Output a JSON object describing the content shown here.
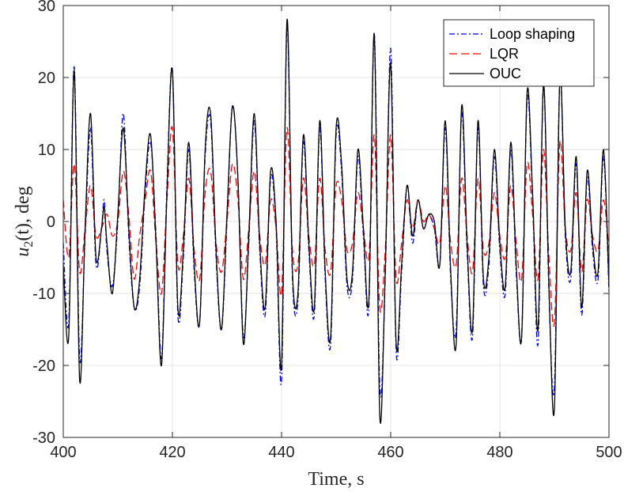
{
  "chart_data": {
    "type": "line",
    "title": "",
    "xlabel": "Time, s",
    "ylabel": "u2(t), deg",
    "ylabel_main": "u",
    "ylabel_sub": "2",
    "ylabel_rest": "(t), deg",
    "xlim": [
      400,
      500
    ],
    "ylim": [
      -30,
      30
    ],
    "xticks": [
      400,
      420,
      440,
      460,
      480,
      500
    ],
    "yticks": [
      -30,
      -20,
      -10,
      0,
      10,
      20,
      30
    ],
    "grid": true,
    "legend_position": "top-right",
    "series": [
      {
        "name": "Loop shaping",
        "color": "#0000ff",
        "style": "dash-dot",
        "points": [
          [
            400,
            -3
          ],
          [
            401,
            -14
          ],
          [
            402,
            21.5
          ],
          [
            403,
            -19
          ],
          [
            404,
            -2
          ],
          [
            405,
            13
          ],
          [
            406,
            -6
          ],
          [
            407,
            -1
          ],
          [
            407.5,
            3
          ],
          [
            408,
            -4
          ],
          [
            409,
            -9
          ],
          [
            410,
            0
          ],
          [
            411,
            15
          ],
          [
            412,
            -2
          ],
          [
            413,
            -12
          ],
          [
            414,
            -9
          ],
          [
            415,
            4
          ],
          [
            416,
            11
          ],
          [
            417,
            -2
          ],
          [
            418,
            -19
          ],
          [
            419,
            5
          ],
          [
            420,
            21
          ],
          [
            421,
            -13
          ],
          [
            422,
            -5
          ],
          [
            423,
            10
          ],
          [
            424,
            -7
          ],
          [
            425,
            -14
          ],
          [
            426,
            9
          ],
          [
            427,
            14
          ],
          [
            428,
            -5
          ],
          [
            429,
            -15
          ],
          [
            430,
            0
          ],
          [
            431,
            16
          ],
          [
            432,
            6
          ],
          [
            433,
            -16
          ],
          [
            434,
            -3
          ],
          [
            435,
            14
          ],
          [
            436,
            -4
          ],
          [
            437,
            -13
          ],
          [
            438,
            6
          ],
          [
            439,
            -1
          ],
          [
            440,
            -22
          ],
          [
            441,
            27
          ],
          [
            442,
            -8
          ],
          [
            443,
            -11
          ],
          [
            444,
            11
          ],
          [
            445,
            -4
          ],
          [
            446,
            -13
          ],
          [
            447,
            13
          ],
          [
            448,
            -8
          ],
          [
            449,
            -17
          ],
          [
            450,
            12
          ],
          [
            451,
            7
          ],
          [
            452,
            -9
          ],
          [
            453,
            -8
          ],
          [
            454,
            9
          ],
          [
            455,
            -2
          ],
          [
            456,
            -12
          ],
          [
            457,
            26
          ],
          [
            458,
            -23
          ],
          [
            459,
            -8
          ],
          [
            460,
            24
          ],
          [
            461,
            -18
          ],
          [
            462,
            -7
          ],
          [
            463,
            5
          ],
          [
            464,
            -3
          ],
          [
            465,
            3
          ],
          [
            466,
            -1
          ],
          [
            467,
            1
          ],
          [
            468,
            -1
          ],
          [
            469,
            -6
          ],
          [
            470,
            13
          ],
          [
            471,
            -8
          ],
          [
            472,
            -15
          ],
          [
            473,
            15
          ],
          [
            474,
            -4
          ],
          [
            475,
            -16
          ],
          [
            476,
            13
          ],
          [
            477,
            -9
          ],
          [
            478,
            -6
          ],
          [
            479,
            9
          ],
          [
            480,
            -4
          ],
          [
            481,
            -10
          ],
          [
            482,
            10
          ],
          [
            483,
            -7
          ],
          [
            484,
            -16
          ],
          [
            485,
            17
          ],
          [
            486,
            3
          ],
          [
            487,
            -17
          ],
          [
            488,
            19
          ],
          [
            489,
            -10
          ],
          [
            490,
            -23
          ],
          [
            491,
            20
          ],
          [
            492,
            -2
          ],
          [
            493,
            -8
          ],
          [
            494,
            8
          ],
          [
            495,
            -13
          ],
          [
            496,
            6
          ],
          [
            497,
            -4
          ],
          [
            498,
            -8
          ],
          [
            499,
            9
          ],
          [
            500,
            -10
          ]
        ]
      },
      {
        "name": "LQR",
        "color": "#ff0000",
        "style": "dashed",
        "points": [
          [
            400,
            3
          ],
          [
            401,
            -5
          ],
          [
            402,
            8
          ],
          [
            403,
            -7
          ],
          [
            404,
            -1
          ],
          [
            405,
            5
          ],
          [
            406,
            -2
          ],
          [
            407,
            -1
          ],
          [
            408,
            1
          ],
          [
            409,
            -2
          ],
          [
            410,
            0
          ],
          [
            411,
            7
          ],
          [
            412,
            1
          ],
          [
            413,
            -8
          ],
          [
            414,
            -2
          ],
          [
            415,
            3
          ],
          [
            416,
            7
          ],
          [
            417,
            -3
          ],
          [
            418,
            -10
          ],
          [
            419,
            3
          ],
          [
            420,
            13
          ],
          [
            421,
            -6
          ],
          [
            422,
            -2
          ],
          [
            423,
            6
          ],
          [
            424,
            -4
          ],
          [
            425,
            -8
          ],
          [
            426,
            4
          ],
          [
            427,
            7
          ],
          [
            428,
            -3
          ],
          [
            429,
            -7
          ],
          [
            430,
            0
          ],
          [
            431,
            8
          ],
          [
            432,
            3
          ],
          [
            433,
            -8
          ],
          [
            434,
            -1
          ],
          [
            435,
            7
          ],
          [
            436,
            -2
          ],
          [
            437,
            -6
          ],
          [
            438,
            3
          ],
          [
            439,
            -1
          ],
          [
            440,
            -10
          ],
          [
            441,
            13
          ],
          [
            442,
            -4
          ],
          [
            443,
            -6
          ],
          [
            444,
            6
          ],
          [
            445,
            -2
          ],
          [
            446,
            -6
          ],
          [
            447,
            6
          ],
          [
            448,
            -4
          ],
          [
            449,
            -7
          ],
          [
            450,
            5
          ],
          [
            451,
            3
          ],
          [
            452,
            -4
          ],
          [
            453,
            -3
          ],
          [
            454,
            4
          ],
          [
            455,
            -1
          ],
          [
            456,
            -5
          ],
          [
            457,
            12
          ],
          [
            458,
            -12
          ],
          [
            459,
            -4
          ],
          [
            460,
            12
          ],
          [
            461,
            -8
          ],
          [
            462,
            -3
          ],
          [
            463,
            3
          ],
          [
            464,
            -1
          ],
          [
            465,
            3
          ],
          [
            466,
            0
          ],
          [
            467,
            1
          ],
          [
            468,
            -1
          ],
          [
            469,
            -3
          ],
          [
            470,
            5
          ],
          [
            471,
            -3
          ],
          [
            472,
            -6
          ],
          [
            473,
            6
          ],
          [
            474,
            -2
          ],
          [
            475,
            -7
          ],
          [
            476,
            6
          ],
          [
            477,
            -4
          ],
          [
            478,
            -3
          ],
          [
            479,
            4
          ],
          [
            480,
            -2
          ],
          [
            481,
            -5
          ],
          [
            482,
            5
          ],
          [
            483,
            -3
          ],
          [
            484,
            -8
          ],
          [
            485,
            8
          ],
          [
            486,
            1
          ],
          [
            487,
            -8
          ],
          [
            488,
            10
          ],
          [
            489,
            -5
          ],
          [
            490,
            -14
          ],
          [
            491,
            11
          ],
          [
            492,
            -1
          ],
          [
            493,
            -4
          ],
          [
            494,
            4
          ],
          [
            495,
            -7
          ],
          [
            496,
            3
          ],
          [
            497,
            -2
          ],
          [
            498,
            -4
          ],
          [
            499,
            3
          ],
          [
            500,
            -4
          ]
        ]
      },
      {
        "name": "OUC",
        "color": "#000000",
        "style": "solid",
        "points": [
          [
            400,
            -6
          ],
          [
            401,
            -16
          ],
          [
            402,
            21
          ],
          [
            403,
            -22
          ],
          [
            404,
            -1
          ],
          [
            405,
            15
          ],
          [
            406,
            -5
          ],
          [
            407,
            -1
          ],
          [
            407.5,
            2
          ],
          [
            408,
            -3
          ],
          [
            409,
            -10
          ],
          [
            410,
            1
          ],
          [
            411,
            13
          ],
          [
            412,
            -1
          ],
          [
            413,
            -12
          ],
          [
            414,
            -8
          ],
          [
            415,
            5
          ],
          [
            416,
            12
          ],
          [
            417,
            -3
          ],
          [
            418,
            -20
          ],
          [
            419,
            4
          ],
          [
            420,
            21
          ],
          [
            421,
            -12
          ],
          [
            422,
            -4
          ],
          [
            423,
            11
          ],
          [
            424,
            -6
          ],
          [
            425,
            -14
          ],
          [
            426,
            10
          ],
          [
            427,
            15
          ],
          [
            428,
            -4
          ],
          [
            429,
            -15
          ],
          [
            430,
            1
          ],
          [
            431,
            16
          ],
          [
            432,
            6
          ],
          [
            433,
            -17
          ],
          [
            434,
            -2
          ],
          [
            435,
            15
          ],
          [
            436,
            -3
          ],
          [
            437,
            -12
          ],
          [
            438,
            7
          ],
          [
            439,
            0
          ],
          [
            440,
            -20
          ],
          [
            441,
            28
          ],
          [
            442,
            -7
          ],
          [
            443,
            -10
          ],
          [
            444,
            12
          ],
          [
            445,
            -3
          ],
          [
            446,
            -12
          ],
          [
            447,
            14
          ],
          [
            448,
            -7
          ],
          [
            449,
            -16
          ],
          [
            450,
            13
          ],
          [
            451,
            8
          ],
          [
            452,
            -8
          ],
          [
            453,
            -7
          ],
          [
            454,
            10
          ],
          [
            455,
            -1
          ],
          [
            456,
            -11
          ],
          [
            457,
            26
          ],
          [
            458,
            -27
          ],
          [
            459,
            -7
          ],
          [
            460,
            22
          ],
          [
            461,
            -17
          ],
          [
            462,
            -6
          ],
          [
            463,
            5
          ],
          [
            464,
            -2
          ],
          [
            465,
            3
          ],
          [
            466,
            -1
          ],
          [
            467,
            1
          ],
          [
            468,
            0
          ],
          [
            469,
            -6
          ],
          [
            470,
            14
          ],
          [
            471,
            -7
          ],
          [
            472,
            -17
          ],
          [
            473,
            16
          ],
          [
            474,
            -3
          ],
          [
            475,
            -15
          ],
          [
            476,
            14
          ],
          [
            477,
            -8
          ],
          [
            478,
            -5
          ],
          [
            479,
            10
          ],
          [
            480,
            -3
          ],
          [
            481,
            -9
          ],
          [
            482,
            11
          ],
          [
            483,
            -6
          ],
          [
            484,
            -16
          ],
          [
            485,
            18
          ],
          [
            486,
            4
          ],
          [
            487,
            -15
          ],
          [
            488,
            19
          ],
          [
            489,
            -9
          ],
          [
            490,
            -26
          ],
          [
            491,
            20
          ],
          [
            492,
            -1
          ],
          [
            493,
            -7
          ],
          [
            494,
            9
          ],
          [
            495,
            -12
          ],
          [
            496,
            7
          ],
          [
            497,
            -3
          ],
          [
            498,
            -7
          ],
          [
            499,
            10
          ],
          [
            500,
            -9
          ]
        ]
      }
    ]
  }
}
